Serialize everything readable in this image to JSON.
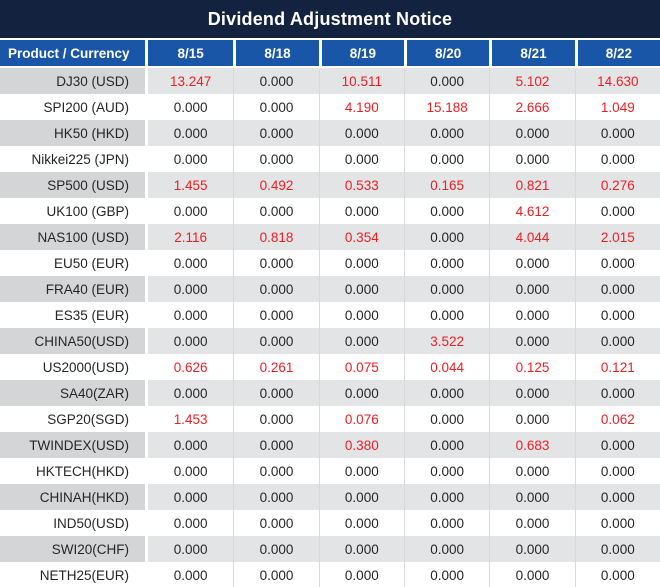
{
  "title": "Dividend Adjustment Notice",
  "table": {
    "product_header": "Product / Currency",
    "date_headers": [
      "8/15",
      "8/18",
      "8/19",
      "8/20",
      "8/21",
      "8/22"
    ],
    "rows": [
      {
        "product": "DJ30 (USD)",
        "values": [
          "13.247",
          "0.000",
          "10.511",
          "0.000",
          "5.102",
          "14.630"
        ],
        "red": [
          true,
          false,
          true,
          false,
          true,
          true
        ]
      },
      {
        "product": "SPI200 (AUD)",
        "values": [
          "0.000",
          "0.000",
          "4.190",
          "15.188",
          "2.666",
          "1.049"
        ],
        "red": [
          false,
          false,
          true,
          true,
          true,
          true
        ]
      },
      {
        "product": "HK50 (HKD)",
        "values": [
          "0.000",
          "0.000",
          "0.000",
          "0.000",
          "0.000",
          "0.000"
        ],
        "red": [
          false,
          false,
          false,
          false,
          false,
          false
        ]
      },
      {
        "product": "Nikkei225 (JPN)",
        "values": [
          "0.000",
          "0.000",
          "0.000",
          "0.000",
          "0.000",
          "0.000"
        ],
        "red": [
          false,
          false,
          false,
          false,
          false,
          false
        ]
      },
      {
        "product": "SP500 (USD)",
        "values": [
          "1.455",
          "0.492",
          "0.533",
          "0.165",
          "0.821",
          "0.276"
        ],
        "red": [
          true,
          true,
          true,
          true,
          true,
          true
        ]
      },
      {
        "product": "UK100 (GBP)",
        "values": [
          "0.000",
          "0.000",
          "0.000",
          "0.000",
          "4.612",
          "0.000"
        ],
        "red": [
          false,
          false,
          false,
          false,
          true,
          false
        ]
      },
      {
        "product": "NAS100 (USD)",
        "values": [
          "2.116",
          "0.818",
          "0.354",
          "0.000",
          "4.044",
          "2.015"
        ],
        "red": [
          true,
          true,
          true,
          false,
          true,
          true
        ]
      },
      {
        "product": "EU50 (EUR)",
        "values": [
          "0.000",
          "0.000",
          "0.000",
          "0.000",
          "0.000",
          "0.000"
        ],
        "red": [
          false,
          false,
          false,
          false,
          false,
          false
        ]
      },
      {
        "product": "FRA40 (EUR)",
        "values": [
          "0.000",
          "0.000",
          "0.000",
          "0.000",
          "0.000",
          "0.000"
        ],
        "red": [
          false,
          false,
          false,
          false,
          false,
          false
        ]
      },
      {
        "product": "ES35 (EUR)",
        "values": [
          "0.000",
          "0.000",
          "0.000",
          "0.000",
          "0.000",
          "0.000"
        ],
        "red": [
          false,
          false,
          false,
          false,
          false,
          false
        ]
      },
      {
        "product": "CHINA50(USD)",
        "values": [
          "0.000",
          "0.000",
          "0.000",
          "3.522",
          "0.000",
          "0.000"
        ],
        "red": [
          false,
          false,
          false,
          true,
          false,
          false
        ]
      },
      {
        "product": "US2000(USD)",
        "values": [
          "0.626",
          "0.261",
          "0.075",
          "0.044",
          "0.125",
          "0.121"
        ],
        "red": [
          true,
          true,
          true,
          true,
          true,
          true
        ]
      },
      {
        "product": "SA40(ZAR)",
        "values": [
          "0.000",
          "0.000",
          "0.000",
          "0.000",
          "0.000",
          "0.000"
        ],
        "red": [
          false,
          false,
          false,
          false,
          false,
          false
        ]
      },
      {
        "product": "SGP20(SGD)",
        "values": [
          "1.453",
          "0.000",
          "0.076",
          "0.000",
          "0.000",
          "0.062"
        ],
        "red": [
          true,
          false,
          true,
          false,
          false,
          true
        ]
      },
      {
        "product": "TWINDEX(USD)",
        "values": [
          "0.000",
          "0.000",
          "0.380",
          "0.000",
          "0.683",
          "0.000"
        ],
        "red": [
          false,
          false,
          true,
          false,
          true,
          false
        ]
      },
      {
        "product": "HKTECH(HKD)",
        "values": [
          "0.000",
          "0.000",
          "0.000",
          "0.000",
          "0.000",
          "0.000"
        ],
        "red": [
          false,
          false,
          false,
          false,
          false,
          false
        ]
      },
      {
        "product": "CHINAH(HKD)",
        "values": [
          "0.000",
          "0.000",
          "0.000",
          "0.000",
          "0.000",
          "0.000"
        ],
        "red": [
          false,
          false,
          false,
          false,
          false,
          false
        ]
      },
      {
        "product": "IND50(USD)",
        "values": [
          "0.000",
          "0.000",
          "0.000",
          "0.000",
          "0.000",
          "0.000"
        ],
        "red": [
          false,
          false,
          false,
          false,
          false,
          false
        ]
      },
      {
        "product": "SWI20(CHF)",
        "values": [
          "0.000",
          "0.000",
          "0.000",
          "0.000",
          "0.000",
          "0.000"
        ],
        "red": [
          false,
          false,
          false,
          false,
          false,
          false
        ]
      },
      {
        "product": "NETH25(EUR)",
        "values": [
          "0.000",
          "0.000",
          "0.000",
          "0.000",
          "0.000",
          "0.000"
        ],
        "red": [
          false,
          false,
          false,
          false,
          false,
          false
        ]
      }
    ]
  },
  "colors": {
    "title_bg": "#13233f",
    "header_bg": "#1a56a8",
    "stripe_product": "#d4d5d7",
    "stripe_value": "#e3e4e6",
    "grid_line": "#d9d9d9",
    "value_text": "#262626",
    "dividend_red": "#ee1e23"
  }
}
